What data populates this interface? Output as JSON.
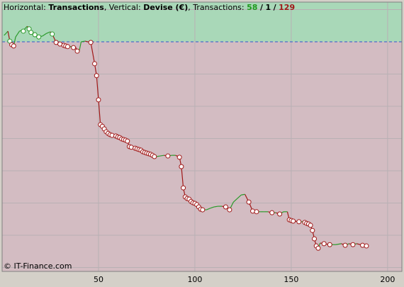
{
  "chart_data": {
    "type": "line",
    "header": {
      "horizontal_prefix": "Horizontal:",
      "x_label": "Transactions",
      "vertical_prefix": ", Vertical:",
      "y_label": "Devise (€)",
      "count_prefix": ", Transactions:",
      "wins": 58,
      "even": 1,
      "losses": 129,
      "separator": "/"
    },
    "credit": "© IT-Finance.com",
    "x": [
      1,
      2,
      3,
      4,
      5,
      6,
      7,
      8,
      9,
      10,
      11,
      12,
      13,
      14,
      15,
      17,
      19,
      21,
      23,
      25,
      26,
      28,
      30,
      32,
      33,
      34,
      36,
      37,
      38,
      39,
      40,
      41,
      43,
      46,
      48,
      49,
      50,
      51,
      52,
      53,
      54,
      55,
      56,
      57,
      58,
      59,
      60,
      61,
      62,
      63,
      64,
      65,
      66,
      67,
      68,
      69,
      70,
      71,
      72,
      73,
      74,
      75,
      76,
      77,
      78,
      79,
      80,
      82,
      84,
      86,
      88,
      90,
      92,
      93,
      94,
      95,
      96,
      97,
      98,
      99,
      100,
      101,
      102,
      103,
      104,
      106,
      108,
      110,
      112,
      114,
      116,
      118,
      120,
      122,
      124,
      126,
      128,
      130,
      132,
      134,
      136,
      138,
      140,
      142,
      144,
      146,
      148,
      149,
      150,
      151,
      152,
      154,
      156,
      157,
      158,
      159,
      160,
      161,
      162,
      163,
      164,
      165,
      167,
      170,
      173,
      176,
      178,
      180,
      182,
      184,
      187,
      189
    ],
    "series": [
      {
        "name": "Devise (€)",
        "values": [
          0.2,
          0.26,
          0.33,
          0.02,
          -0.09,
          -0.13,
          0.15,
          0.24,
          0.33,
          0.35,
          0.33,
          0.42,
          0.48,
          0.4,
          0.29,
          0.22,
          0.15,
          0.18,
          0.26,
          0.31,
          0.24,
          -0.02,
          -0.07,
          -0.11,
          -0.13,
          -0.15,
          -0.15,
          -0.18,
          -0.15,
          -0.29,
          -0.29,
          0.0,
          0.02,
          -0.02,
          -0.68,
          -1.05,
          -1.8,
          -2.57,
          -2.62,
          -2.7,
          -2.79,
          -2.84,
          -2.88,
          -2.9,
          -2.9,
          -2.92,
          -2.95,
          -2.97,
          -3.01,
          -3.03,
          -3.05,
          -3.08,
          -3.25,
          -3.27,
          -3.27,
          -3.3,
          -3.32,
          -3.34,
          -3.36,
          -3.41,
          -3.43,
          -3.45,
          -3.47,
          -3.49,
          -3.52,
          -3.56,
          -3.56,
          -3.54,
          -3.52,
          -3.54,
          -3.52,
          -3.52,
          -3.58,
          -3.87,
          -4.53,
          -4.81,
          -4.86,
          -4.88,
          -4.95,
          -4.99,
          -5.01,
          -5.05,
          -5.12,
          -5.19,
          -5.21,
          -5.21,
          -5.16,
          -5.12,
          -5.1,
          -5.1,
          -5.12,
          -5.21,
          -4.97,
          -4.86,
          -4.75,
          -4.73,
          -4.97,
          -5.25,
          -5.27,
          -5.27,
          -5.27,
          -5.27,
          -5.3,
          -5.3,
          -5.34,
          -5.27,
          -5.27,
          -5.52,
          -5.54,
          -5.56,
          -5.56,
          -5.58,
          -5.58,
          -5.6,
          -5.63,
          -5.65,
          -5.69,
          -5.85,
          -6.11,
          -6.33,
          -6.4,
          -6.24,
          -6.26,
          -6.29,
          -6.29,
          -6.26,
          -6.31,
          -6.26,
          -6.29,
          -6.26,
          -6.31,
          -6.33
        ]
      }
    ],
    "up_color": "#2a9a2a",
    "down_color": "#a01818",
    "gain_fill": "#a9d8b8",
    "loss_fill": "#d3bcc2",
    "baseline_color": "#3355cc",
    "xlim": [
      0,
      207.4
    ],
    "ylim": [
      -7.12,
      1.23
    ],
    "xticks": [
      50,
      100,
      150,
      200
    ],
    "yticks": [
      -7,
      -6,
      -5,
      -4,
      -3,
      -2,
      -1,
      1
    ],
    "grid": true
  }
}
